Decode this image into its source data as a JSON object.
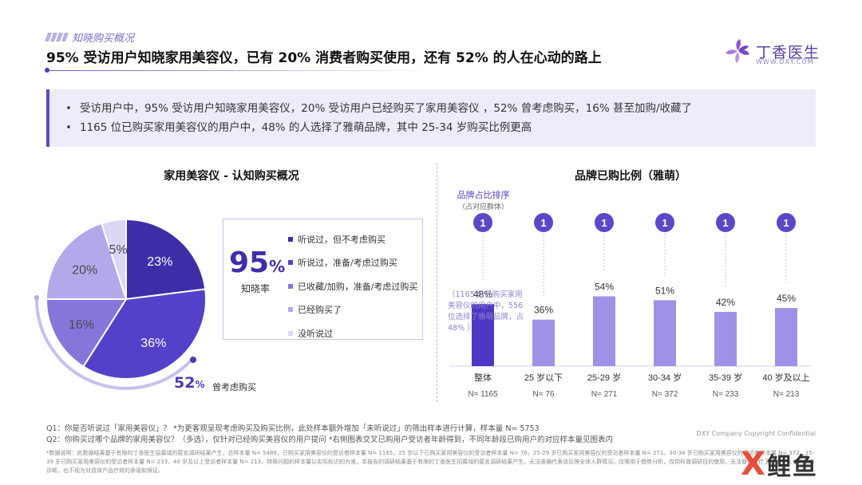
{
  "header": {
    "section_tag": "知晓购买概况",
    "headline": "95% 受访用户知晓家用美容仪，已有 20% 消费者购买使用，还有 52% 的人在心动的路上"
  },
  "logo": {
    "name": "丁香医生",
    "url": "WWW.DXY.COM",
    "icon": "dxy-flower-icon"
  },
  "summary": [
    "受访用户中，95% 受访用户知晓家用美容仪，20% 受访用户已经购买了家用美容仪 ，52% 曾考虑购买，16% 甚至加购/收藏了",
    "1165 位已购买家用美容仪的用户中，48% 的人选择了雅萌品牌，其中 25-34 岁购买比例更高"
  ],
  "left_panel": {
    "awareness_value": "95",
    "awareness_unit": "%",
    "awareness_label": "知晓率",
    "consider_value": "52",
    "consider_unit": "%",
    "consider_label": "曾考虑购买"
  },
  "right_panel": {
    "rank_title": "品牌占比排序",
    "rank_sub": "（占对应群体）",
    "bar_note": "（1165 位已购买家用美容仪的用户中，556 位选择了雅萌品牌，占 48% ）"
  },
  "chart_data": [
    {
      "type": "pie",
      "title": "家用美容仪 - 认知购买概况",
      "slices": [
        {
          "label": "听说过，但不考虑购买",
          "value": 23,
          "color": "#3d2ea8"
        },
        {
          "label": "听说过，准备/考虑过购买",
          "value": 36,
          "color": "#5441c9"
        },
        {
          "label": "已收藏/加购，准备/考虑过购买",
          "value": 16,
          "color": "#8576dc"
        },
        {
          "label": "已经购买了",
          "value": 20,
          "color": "#b3a9ea"
        },
        {
          "label": "没听说过",
          "value": 5,
          "color": "#dcd7f6"
        }
      ]
    },
    {
      "type": "bar",
      "title": "品牌已购比例（雅萌）",
      "categories": [
        "整体",
        "25 岁以下",
        "25-29 岁",
        "30-34 岁",
        "35-39 岁",
        "40 岁及以上"
      ],
      "sample_sizes": [
        "N= 1165",
        "N= 76",
        "N= 271",
        "N= 372",
        "N= 233",
        "N= 213"
      ],
      "values": [
        48,
        36,
        54,
        51,
        42,
        45
      ],
      "value_labels": [
        "48%",
        "36%",
        "54%",
        "51%",
        "42%",
        "45%"
      ],
      "ranks": [
        "1",
        "1",
        "1",
        "1",
        "1",
        "1"
      ],
      "colors": {
        "highlight": "#4c38c2",
        "normal": "#9f92e6",
        "rank": "#5a48c8"
      },
      "ylim": [
        0,
        100
      ]
    }
  ],
  "footnotes": {
    "q1": "Q1：你是否听说过「家用美容仪」？ *为更客观呈现考虑购买及购买比例，此处样本额外增加「未听说过」的筛出样本进行计算，样本量 N= 5753",
    "q2": "Q2：你购买过哪个品牌的家用美容仪？（多选），仅针对已经购买美容仪的用户提问 *右侧图表交叉已购用户受访者年龄得到，不同年龄段已购用户的对应样本量见图表内",
    "note": "*数据说明：此数据结果基于有限的丁香医生招募域的匿名调研结果产生，总样本量 N= 5489，已购买家用美容仪的受访者样本量 N= 1165，25 岁以下已购买家用美容仪的受访者样本量 N= 76，25-29 岁已购买家用美容仪的受访者样本量 N= 271，30-34 岁已购买家用美容仪的受访者样本量 N= 372，35-39 岁已购买家用美容仪的受访者样本量 N= 233，40 岁及以上受访者样本量 N= 213，特殊问题的样本量以实际标识的为准，本报告的调研结果基于有限的丁香医生招募域的匿名调研结果产生，无法准确代表该反映全体人群情况，仅限用于趋势分析，仅供科普调研目的使用，无法替代医疗卫生专业人士的临床诊断，也不视为对具体产品疗效的承诺和保证。",
    "copyright": "DXY Company Copyright Confidential"
  },
  "watermark": {
    "mark": "X",
    "text": "鲤鱼"
  }
}
